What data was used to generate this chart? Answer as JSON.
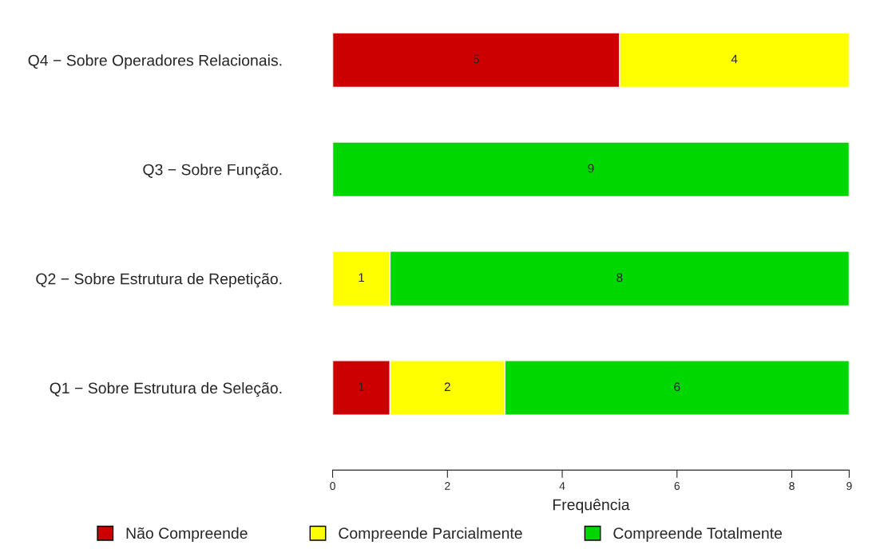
{
  "chart_data": {
    "type": "bar",
    "orientation": "horizontal",
    "stacked": true,
    "categories": [
      "Q4 − Sobre Operadores Relacionais.",
      "Q3 − Sobre Função.",
      "Q2 − Sobre Estrutura de Repetição.",
      "Q1 − Sobre Estrutura de Seleção."
    ],
    "series": [
      {
        "name": "Não Compreende",
        "color": "#cc0000",
        "values": [
          5,
          null,
          null,
          1
        ]
      },
      {
        "name": "Compreende Parcialmente",
        "color": "#ffff00",
        "values": [
          4,
          null,
          1,
          2
        ]
      },
      {
        "name": "Compreende Totalmente",
        "color": "#00d700",
        "values": [
          null,
          9,
          8,
          6
        ]
      }
    ],
    "xlabel": "Frequência",
    "xlim": [
      0,
      9
    ],
    "xticks": [
      0,
      2,
      4,
      6,
      8,
      9
    ],
    "data_labels": true,
    "grid": false,
    "legend": "bottom"
  }
}
